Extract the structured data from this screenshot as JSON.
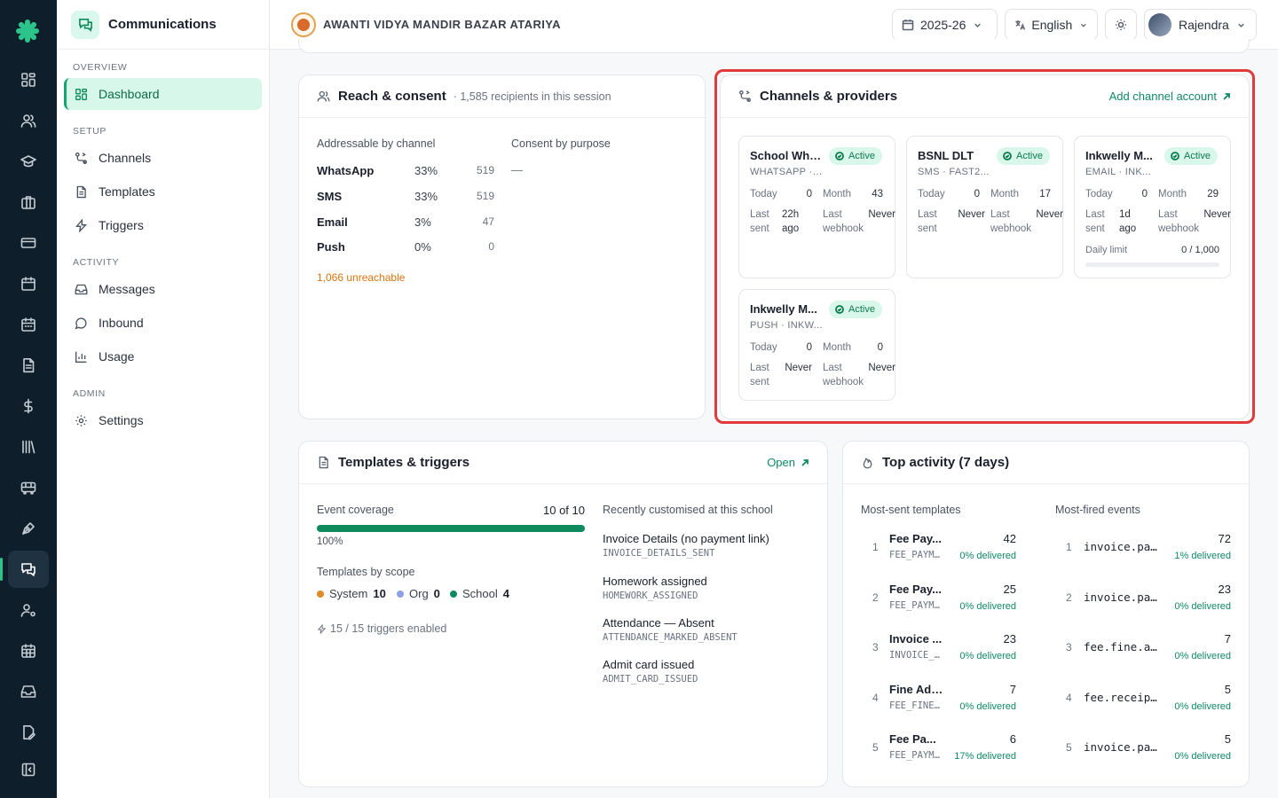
{
  "rail": {
    "icons": [
      "dashboard-icon",
      "users-icon",
      "graduation-cap-icon",
      "briefcase-icon",
      "credit-card-icon",
      "calendar-icon",
      "calendar-days-icon",
      "file-text-icon",
      "dollar-icon",
      "library-icon",
      "bus-icon",
      "pen-tool-icon",
      "messages-icon",
      "user-cog-icon",
      "calendar-grid-icon",
      "inbox-icon",
      "file-edit-icon",
      "collapse-sidebar-icon"
    ]
  },
  "sidenav": {
    "title": "Communications",
    "sections": [
      {
        "label": "OVERVIEW",
        "items": [
          {
            "label": "Dashboard",
            "icon": "dashboard-icon",
            "active": true
          }
        ]
      },
      {
        "label": "SETUP",
        "items": [
          {
            "label": "Channels",
            "icon": "route-icon"
          },
          {
            "label": "Templates",
            "icon": "file-text-icon"
          },
          {
            "label": "Triggers",
            "icon": "zap-icon"
          }
        ]
      },
      {
        "label": "ACTIVITY",
        "items": [
          {
            "label": "Messages",
            "icon": "inbox-icon"
          },
          {
            "label": "Inbound",
            "icon": "chat-bubble-icon"
          },
          {
            "label": "Usage",
            "icon": "bar-chart-icon"
          }
        ]
      },
      {
        "label": "ADMIN",
        "items": [
          {
            "label": "Settings",
            "icon": "gear-icon"
          }
        ]
      }
    ]
  },
  "topbar": {
    "school_name": "AWANTI VIDYA MANDIR BAZAR ATARIYA",
    "session": "2025-26",
    "language": "English",
    "user": "Rajendra"
  },
  "reach": {
    "title": "Reach & consent",
    "subtitle": "· 1,585 recipients in this session",
    "addressable_label": "Addressable by channel",
    "consent_label": "Consent by purpose",
    "consent_value": "—",
    "channels": [
      {
        "name": "WhatsApp",
        "pct": "33%",
        "count": "519"
      },
      {
        "name": "SMS",
        "pct": "33%",
        "count": "519"
      },
      {
        "name": "Email",
        "pct": "3%",
        "count": "47"
      },
      {
        "name": "Push",
        "pct": "0%",
        "count": "0"
      }
    ],
    "unreachable": "1,066 unreachable"
  },
  "channels": {
    "title": "Channels & providers",
    "add_link": "Add channel account",
    "labels": {
      "today": "Today",
      "month": "Month",
      "last_sent": "Last sent",
      "last_webhook": "Last webhook",
      "daily_limit": "Daily limit"
    },
    "providers": [
      {
        "name": "School Wha...",
        "status": "Active",
        "type": "WHATSAPP · ...",
        "today": "0",
        "month": "43",
        "last_sent": "22h ago",
        "last_webhook": "Never"
      },
      {
        "name": "BSNL DLT",
        "status": "Active",
        "type": "SMS · FAST2...",
        "today": "0",
        "month": "17",
        "last_sent": "Never",
        "last_webhook": "Never"
      },
      {
        "name": "Inkwelly M...",
        "status": "Active",
        "type": "EMAIL · INK...",
        "today": "0",
        "month": "29",
        "last_sent": "1d ago",
        "last_webhook": "Never",
        "daily_limit": "0 / 1,000"
      },
      {
        "name": "Inkwelly M...",
        "status": "Active",
        "type": "PUSH · INKW...",
        "today": "0",
        "month": "0",
        "last_sent": "Never",
        "last_webhook": "Never"
      }
    ]
  },
  "templates": {
    "title": "Templates & triggers",
    "open_link": "Open",
    "coverage_label": "Event coverage",
    "coverage_value": "10 of 10",
    "coverage_fraction": 1.0,
    "coverage_pct": "100%",
    "scope_label": "Templates by scope",
    "scopes": [
      {
        "name": "System",
        "count": "10",
        "color": "#e08a2a"
      },
      {
        "name": "Org",
        "count": "0",
        "color": "#8ea0e8"
      },
      {
        "name": "School",
        "count": "4",
        "color": "#0f8a5f"
      }
    ],
    "triggers_enabled": "15 / 15 triggers enabled",
    "recent_label": "Recently customised at this school",
    "recent": [
      {
        "name": "Invoice Details (no payment link)",
        "code": "INVOICE_DETAILS_SENT"
      },
      {
        "name": "Homework assigned",
        "code": "HOMEWORK_ASSIGNED"
      },
      {
        "name": "Attendance — Absent",
        "code": "ATTENDANCE_MARKED_ABSENT"
      },
      {
        "name": "Admit card issued",
        "code": "ADMIT_CARD_ISSUED"
      }
    ]
  },
  "activity": {
    "title": "Top activity (7 days)",
    "templates_label": "Most-sent templates",
    "events_label": "Most-fired events",
    "templates": [
      {
        "rank": "1",
        "name": "Fee Pay...",
        "code": "FEE_PAYME...",
        "count": "42",
        "delivered": "0% delivered"
      },
      {
        "rank": "2",
        "name": "Fee Pay...",
        "code": "FEE_PAYME...",
        "count": "25",
        "delivered": "0% delivered"
      },
      {
        "rank": "3",
        "name": "Invoice ...",
        "code": "INVOICE_P...",
        "count": "23",
        "delivered": "0% delivered"
      },
      {
        "rank": "4",
        "name": "Fine Add...",
        "code": "FEE_FINE_...",
        "count": "7",
        "delivered": "0% delivered"
      },
      {
        "rank": "5",
        "name": "Fee Pa...",
        "code": "FEE_PAYM...",
        "count": "6",
        "delivered": "17% delivered"
      }
    ],
    "events": [
      {
        "rank": "1",
        "name": "invoice.pay...",
        "count": "72",
        "delivered": "1% delivered"
      },
      {
        "rank": "2",
        "name": "invoice.pay...",
        "count": "23",
        "delivered": "0% delivered"
      },
      {
        "rank": "3",
        "name": "fee.fine.ad...",
        "count": "7",
        "delivered": "0% delivered"
      },
      {
        "rank": "4",
        "name": "fee.receipt...",
        "count": "5",
        "delivered": "0% delivered"
      },
      {
        "rank": "5",
        "name": "invoice.pay...",
        "count": "5",
        "delivered": "0% delivered"
      }
    ]
  }
}
